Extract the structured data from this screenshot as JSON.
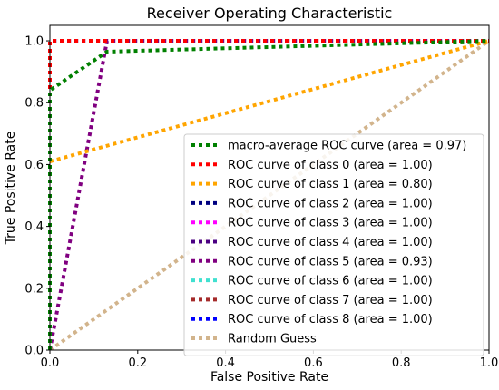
{
  "chart_data": {
    "type": "line",
    "title": "Receiver Operating Characteristic",
    "xlabel": "False Positive Rate",
    "ylabel": "True Positive Rate",
    "xlim": [
      0,
      1
    ],
    "ylim": [
      0,
      1.05
    ],
    "xticks": [
      "0.0",
      "0.2",
      "0.4",
      "0.6",
      "0.8",
      "1.0"
    ],
    "yticks": [
      "0.0",
      "0.2",
      "0.4",
      "0.6",
      "0.8",
      "1.0"
    ],
    "grid": false,
    "legend_position": "lower-right",
    "series": [
      {
        "name": "macro-average ROC curve (area = 0.97)",
        "color": "#008000",
        "x": [
          0,
          0,
          0.13,
          1
        ],
        "y": [
          0,
          0.84,
          0.965,
          1
        ]
      },
      {
        "name": "ROC curve of class 0 (area = 1.00)",
        "color": "#ff0000",
        "x": [
          0,
          0,
          1
        ],
        "y": [
          0,
          1,
          1
        ]
      },
      {
        "name": "ROC curve of class 1 (area = 0.80)",
        "color": "#ffa500",
        "x": [
          0,
          0,
          1
        ],
        "y": [
          0,
          0.61,
          1
        ]
      },
      {
        "name": "ROC curve of class 2 (area = 1.00)",
        "color": "#000080",
        "x": [
          0,
          0,
          1
        ],
        "y": [
          0,
          1,
          1
        ]
      },
      {
        "name": "ROC curve of class 3 (area = 1.00)",
        "color": "#ff00ff",
        "x": [
          0,
          0,
          1
        ],
        "y": [
          0,
          1,
          1
        ]
      },
      {
        "name": "ROC curve of class 4 (area = 1.00)",
        "color": "#4b0082",
        "x": [
          0,
          0,
          1
        ],
        "y": [
          0,
          1,
          1
        ]
      },
      {
        "name": "ROC curve of class 5 (area = 0.93)",
        "color": "#800080",
        "x": [
          0,
          0.13,
          1
        ],
        "y": [
          0,
          1,
          1
        ]
      },
      {
        "name": "ROC curve of class 6 (area = 1.00)",
        "color": "#40e0d0",
        "x": [
          0,
          0,
          1
        ],
        "y": [
          0,
          1,
          1
        ]
      },
      {
        "name": "ROC curve of class 7 (area = 1.00)",
        "color": "#a52a2a",
        "x": [
          0,
          0,
          1
        ],
        "y": [
          0,
          1,
          1
        ]
      },
      {
        "name": "ROC curve of class 8 (area = 1.00)",
        "color": "#0000ff",
        "x": [
          0,
          0,
          1
        ],
        "y": [
          0,
          1,
          1
        ]
      },
      {
        "name": "Random Guess",
        "color": "#d2b48c",
        "x": [
          0,
          1
        ],
        "y": [
          0,
          1
        ]
      }
    ]
  }
}
